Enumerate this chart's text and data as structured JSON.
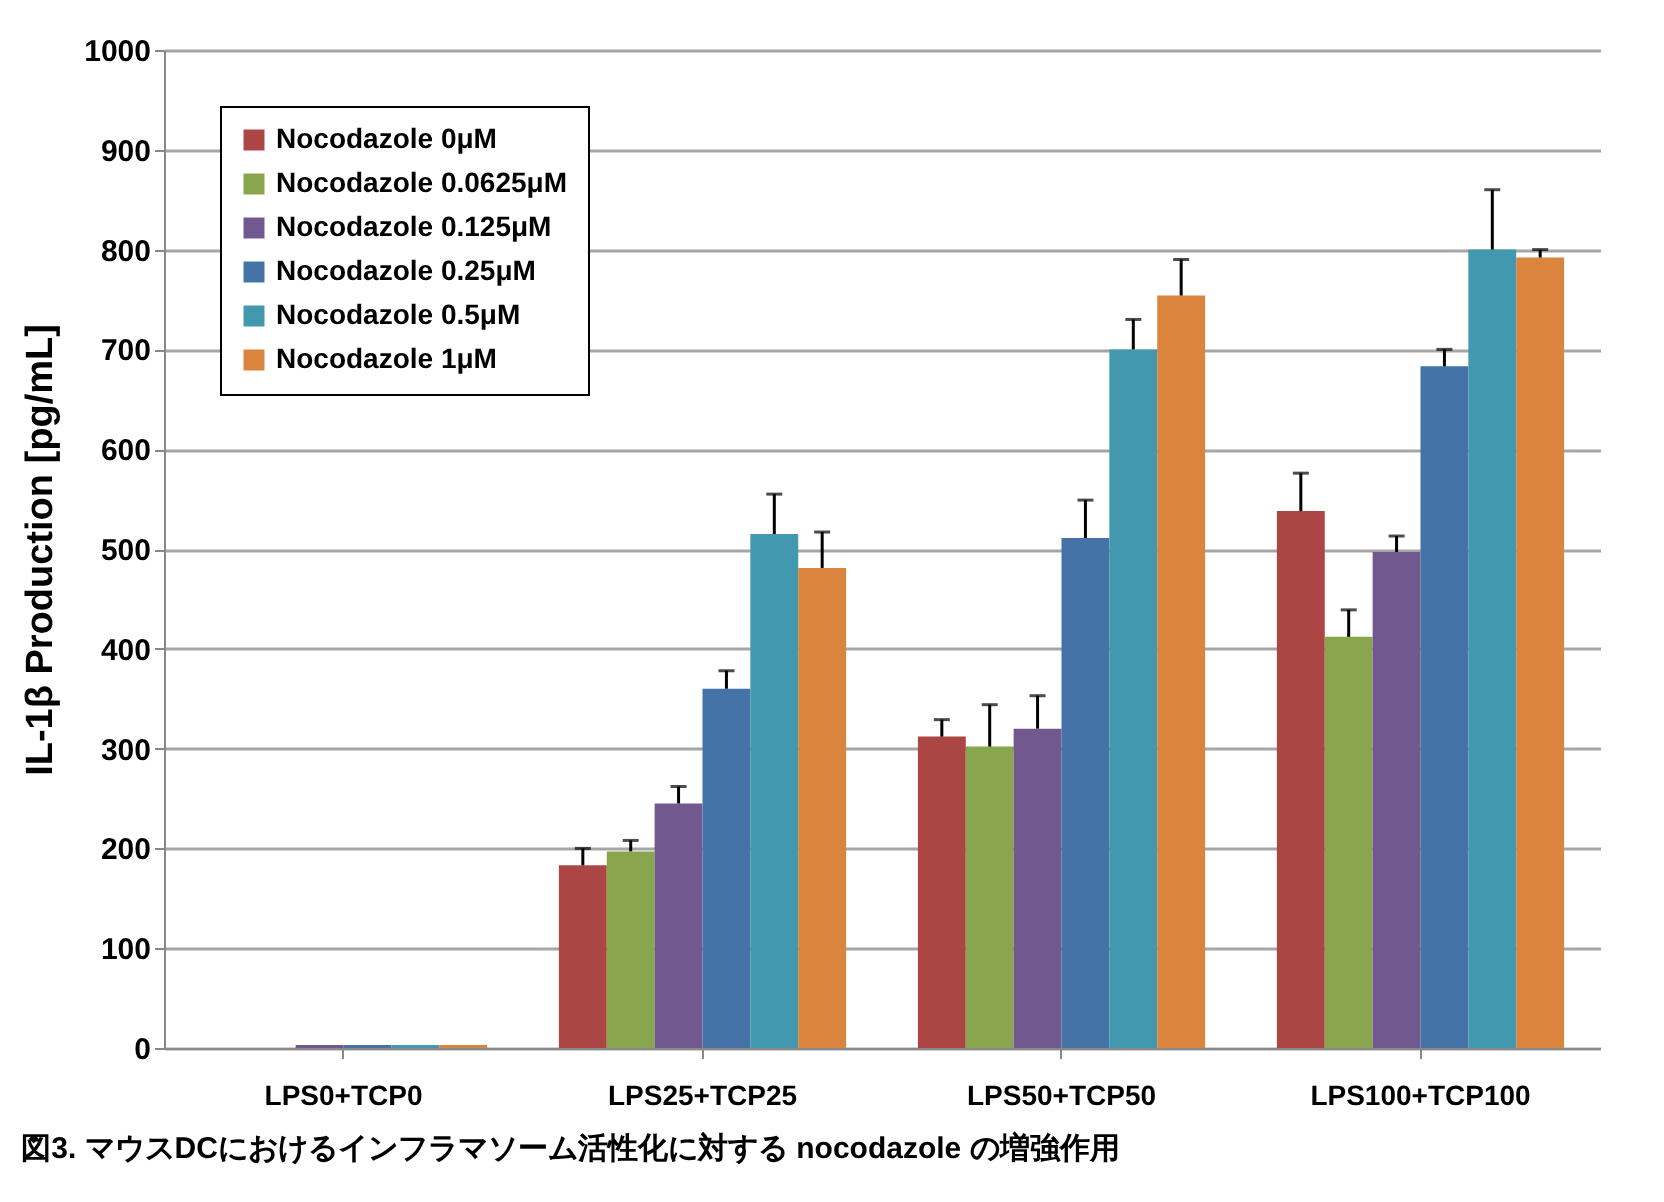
{
  "chart_data": {
    "type": "bar",
    "title": "図3. マウスDCにおけるインフラマソーム活性化に対する nocodazole の増強作用",
    "ylabel": "IL-1β Production [pg/mL]",
    "categories": [
      "LPS0+TCP0",
      "LPS25+TCP25",
      "LPS50+TCP50",
      "LPS100+TCP100"
    ],
    "series": [
      {
        "name": "Nocodazole 0μM",
        "color": "#ab4644",
        "values": [
          0,
          183,
          312,
          538
        ],
        "errors": [
          null,
          [
            183,
            200
          ],
          [
            312,
            329
          ],
          [
            538,
            576
          ]
        ]
      },
      {
        "name": "Nocodazole 0.0625μM",
        "color": "#89a54e",
        "values": [
          0,
          197,
          302,
          412
        ],
        "errors": [
          null,
          [
            197,
            208
          ],
          [
            302,
            344
          ],
          [
            412,
            439
          ]
        ]
      },
      {
        "name": "Nocodazole 0.125μM",
        "color": "#71588f",
        "values": [
          3,
          245,
          320,
          497
        ],
        "errors": [
          null,
          [
            245,
            262
          ],
          [
            320,
            353
          ],
          [
            497,
            513
          ]
        ]
      },
      {
        "name": "Nocodazole 0.25μM",
        "color": "#4572a7",
        "values": [
          3,
          360,
          511,
          683
        ],
        "errors": [
          null,
          [
            360,
            378
          ],
          [
            511,
            549
          ],
          [
            683,
            700
          ]
        ]
      },
      {
        "name": "Nocodazole 0.5μM",
        "color": "#4198af",
        "values": [
          3,
          515,
          700,
          800
        ],
        "errors": [
          null,
          [
            515,
            555
          ],
          [
            700,
            730
          ],
          [
            800,
            860
          ]
        ]
      },
      {
        "name": "Nocodazole 1μM",
        "color": "#db843d",
        "values": [
          3,
          481,
          754,
          792
        ],
        "errors": [
          null,
          [
            481,
            517
          ],
          [
            754,
            790
          ],
          [
            792,
            800
          ]
        ]
      }
    ],
    "ylim": [
      0,
      1000
    ],
    "yticks": [
      0,
      100,
      200,
      300,
      400,
      500,
      600,
      700,
      800,
      900,
      1000
    ],
    "grid": "y",
    "legend": "top left"
  }
}
